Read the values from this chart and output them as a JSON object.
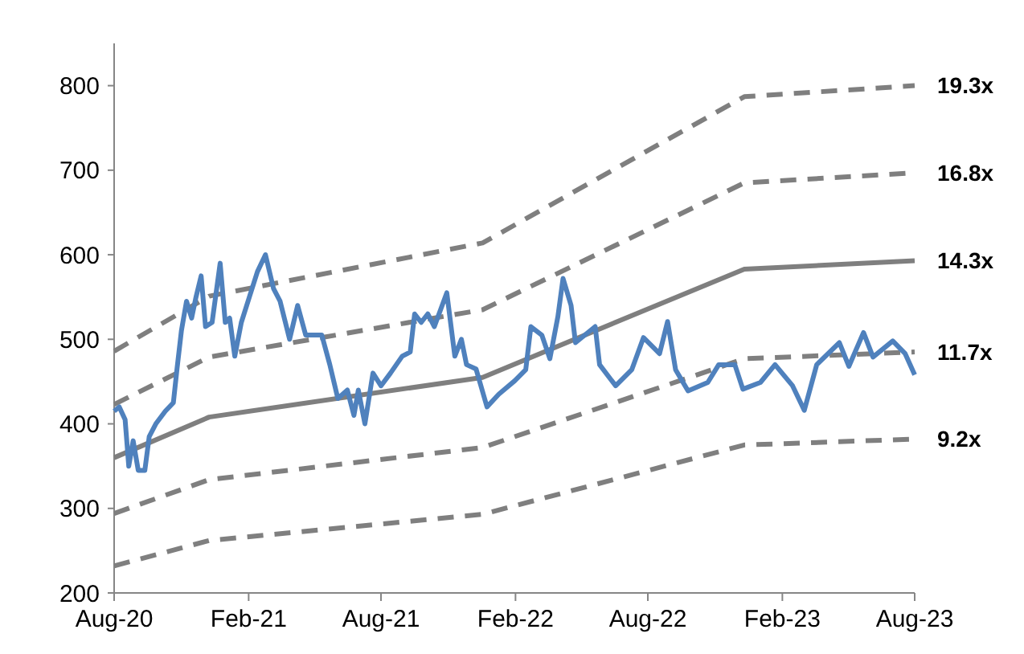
{
  "chart_data": {
    "type": "line",
    "xlim": [
      "2020-08-01",
      "2023-08-01"
    ],
    "xticks": [
      {
        "value": "2020-08-01",
        "label": "Aug-20"
      },
      {
        "value": "2021-02-01",
        "label": "Feb-21"
      },
      {
        "value": "2021-08-01",
        "label": "Aug-21"
      },
      {
        "value": "2022-02-01",
        "label": "Feb-22"
      },
      {
        "value": "2022-08-01",
        "label": "Aug-22"
      },
      {
        "value": "2023-02-01",
        "label": "Feb-23"
      },
      {
        "value": "2023-08-01",
        "label": "Aug-23"
      }
    ],
    "ylim": [
      200,
      850
    ],
    "yticks": [
      200,
      300,
      400,
      500,
      600,
      700,
      800
    ],
    "grid": false,
    "series": [
      {
        "color": "#4f81bd",
        "line_style": "solid",
        "x": [
          "2020-08-01",
          "2020-08-08",
          "2020-08-16",
          "2020-08-21",
          "2020-08-27",
          "2020-09-03",
          "2020-09-12",
          "2020-09-18",
          "2020-09-27",
          "2020-10-10",
          "2020-10-21",
          "2020-10-26",
          "2020-11-01",
          "2020-11-08",
          "2020-11-15",
          "2020-11-21",
          "2020-11-28",
          "2020-12-04",
          "2020-12-13",
          "2020-12-24",
          "2020-12-31",
          "2021-01-06",
          "2021-01-13",
          "2021-01-22",
          "2021-02-02",
          "2021-02-13",
          "2021-02-24",
          "2021-03-07",
          "2021-03-16",
          "2021-03-29",
          "2021-04-09",
          "2021-04-20",
          "2021-05-12",
          "2021-05-23",
          "2021-06-03",
          "2021-06-16",
          "2021-06-25",
          "2021-07-01",
          "2021-07-10",
          "2021-07-21",
          "2021-08-01",
          "2021-08-14",
          "2021-08-30",
          "2021-09-10",
          "2021-09-16",
          "2021-09-25",
          "2021-10-04",
          "2021-10-13",
          "2021-10-30",
          "2021-11-10",
          "2021-11-19",
          "2021-11-26",
          "2021-12-09",
          "2021-12-24",
          "2022-01-09",
          "2022-01-31",
          "2022-02-15",
          "2022-02-22",
          "2022-03-09",
          "2022-03-20",
          "2022-03-31",
          "2022-04-07",
          "2022-04-18",
          "2022-04-24",
          "2022-05-21",
          "2022-05-27",
          "2022-06-18",
          "2022-07-10",
          "2022-07-26",
          "2022-08-17",
          "2022-08-28",
          "2022-09-08",
          "2022-09-25",
          "2022-10-22",
          "2022-11-06",
          "2022-11-28",
          "2022-12-09",
          "2023-01-02",
          "2023-01-22",
          "2023-02-15",
          "2023-03-03",
          "2023-03-20",
          "2023-04-20",
          "2023-05-03",
          "2023-05-23",
          "2023-06-05",
          "2023-07-02",
          "2023-07-19",
          "2023-08-01"
        ],
        "values": [
          415,
          420,
          405,
          350,
          380,
          345,
          345,
          385,
          400,
          415,
          425,
          465,
          510,
          545,
          525,
          550,
          575,
          515,
          520,
          590,
          520,
          525,
          480,
          520,
          550,
          580,
          600,
          560,
          545,
          500,
          540,
          505,
          505,
          470,
          430,
          440,
          410,
          440,
          400,
          460,
          445,
          460,
          480,
          485,
          530,
          520,
          530,
          515,
          555,
          480,
          500,
          470,
          465,
          420,
          435,
          451,
          464,
          515,
          505,
          477,
          527,
          572,
          540,
          496,
          515,
          470,
          445,
          464,
          502,
          483,
          521,
          464,
          439,
          449,
          470,
          470,
          441,
          449,
          470,
          445,
          416,
          470,
          496,
          468,
          508,
          479,
          498,
          483,
          458
        ]
      },
      {
        "name": "19.3x",
        "color": "#7f7f7f",
        "line_style": "dashed",
        "x": [
          "2020-08-01",
          "2020-12-09",
          "2021-12-18",
          "2022-12-11",
          "2023-08-01"
        ],
        "values": [
          486,
          551,
          614,
          787,
          800
        ]
      },
      {
        "name": "16.8x",
        "color": "#7f7f7f",
        "line_style": "dashed",
        "x": [
          "2020-08-01",
          "2020-12-09",
          "2021-12-18",
          "2022-12-11",
          "2023-08-01"
        ],
        "values": [
          423,
          479,
          535,
          685,
          697
        ]
      },
      {
        "name": "14.3x",
        "color": "#7f7f7f",
        "line_style": "solid",
        "x": [
          "2020-08-01",
          "2020-12-09",
          "2021-12-18",
          "2022-12-11",
          "2023-08-01"
        ],
        "values": [
          360,
          408,
          455,
          583,
          593
        ]
      },
      {
        "name": "11.7x",
        "color": "#7f7f7f",
        "line_style": "dashed",
        "x": [
          "2020-08-01",
          "2020-12-09",
          "2021-12-18",
          "2022-12-11",
          "2023-08-01"
        ],
        "values": [
          294,
          334,
          372,
          477,
          485
        ]
      },
      {
        "name": "9.2x",
        "color": "#7f7f7f",
        "line_style": "dashed",
        "x": [
          "2020-08-01",
          "2020-12-09",
          "2021-12-18",
          "2022-12-11",
          "2023-08-01"
        ],
        "values": [
          232,
          262,
          293,
          375,
          382
        ]
      }
    ]
  }
}
